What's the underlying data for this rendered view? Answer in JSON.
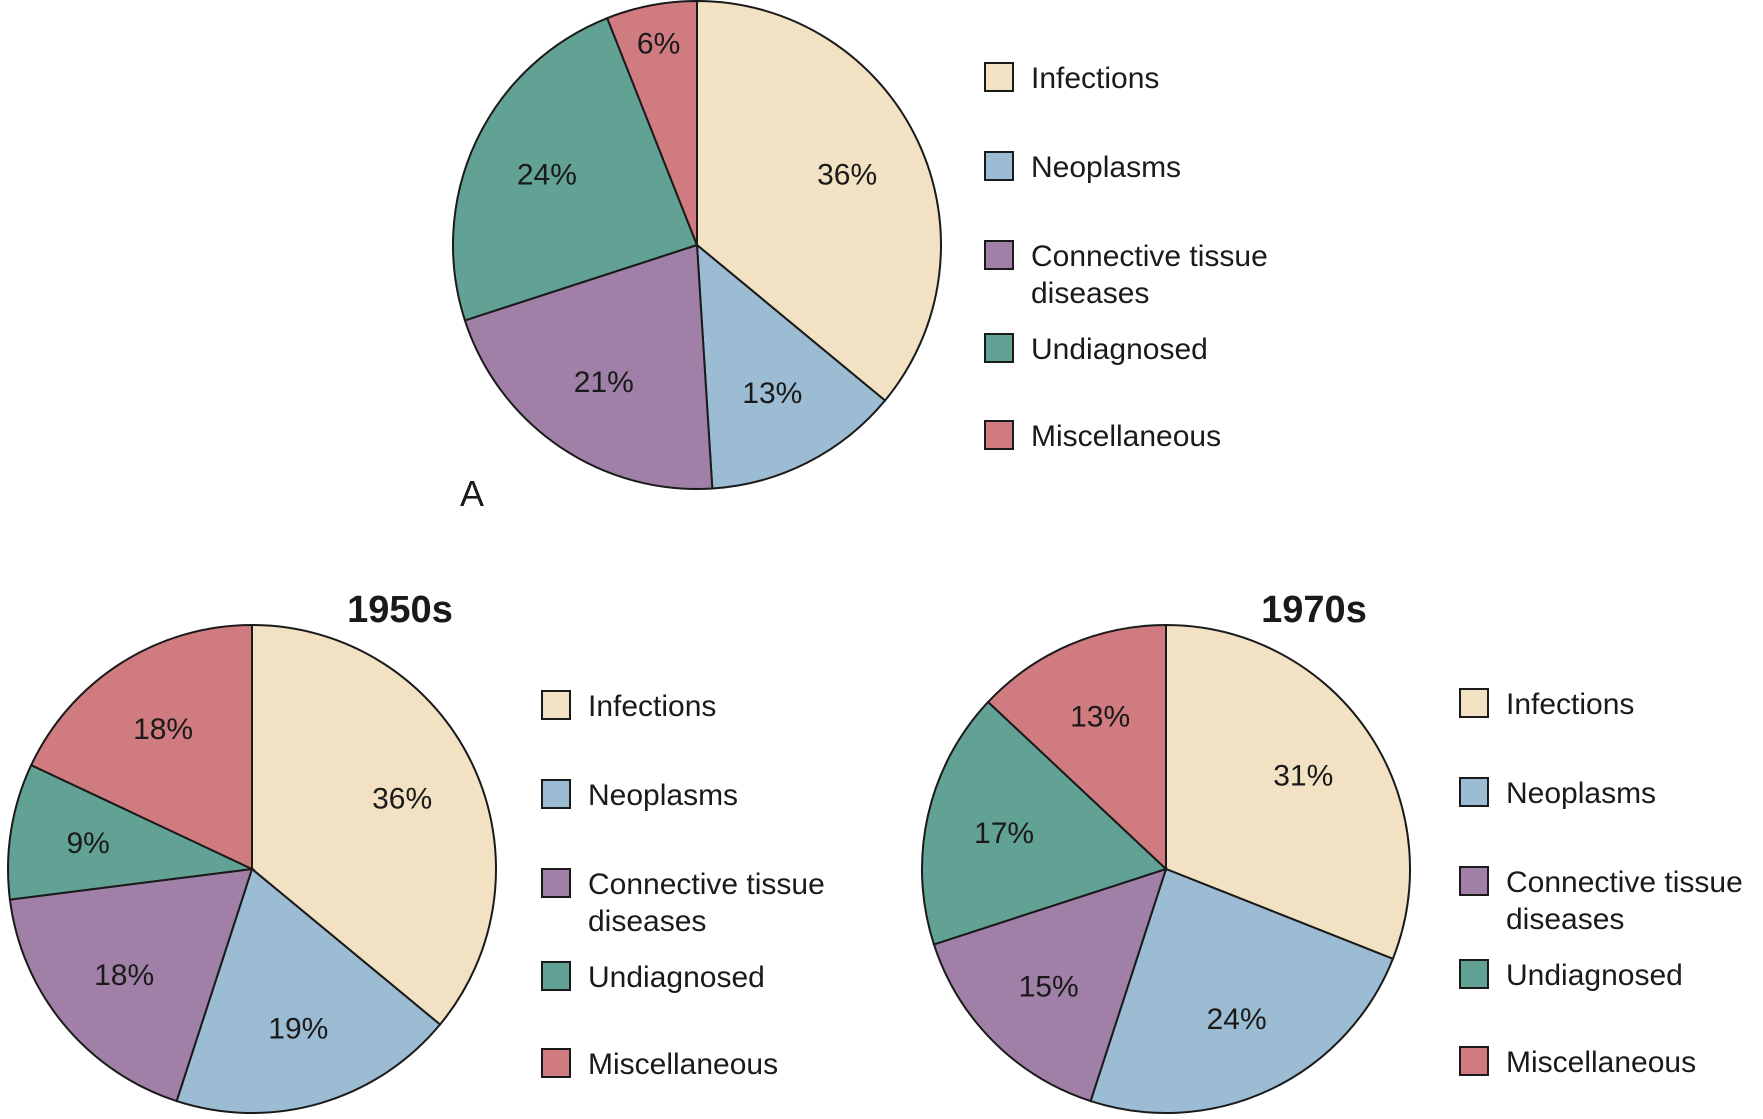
{
  "colors": {
    "infections": "#f2e1c2",
    "neoplasms": "#9cbcd3",
    "connective": "#a180a8",
    "undiagnosed": "#62a295",
    "misc": "#cf7b80",
    "outline": "#1a1a1a"
  },
  "chart_data": [
    {
      "type": "pie",
      "panel_label": "A",
      "title": "",
      "legend": [
        "Infections",
        "Neoplasms",
        "Connective tissue|diseases",
        "Undiagnosed",
        "Miscellaneous"
      ],
      "slices": [
        {
          "category": "Infections",
          "value": 36,
          "label": "36%",
          "color_key": "infections"
        },
        {
          "category": "Neoplasms",
          "value": 13,
          "label": "13%",
          "color_key": "neoplasms"
        },
        {
          "category": "Connective tissue diseases",
          "value": 21,
          "label": "21%",
          "color_key": "connective"
        },
        {
          "category": "Undiagnosed",
          "value": 24,
          "label": "24%",
          "color_key": "undiagnosed"
        },
        {
          "category": "Miscellaneous",
          "value": 6,
          "label": "6%",
          "color_key": "misc"
        }
      ]
    },
    {
      "type": "pie",
      "panel_label": "",
      "title": "1950s",
      "legend": [
        "Infections",
        "Neoplasms",
        "Connective tissue|diseases",
        "Undiagnosed",
        "Miscellaneous"
      ],
      "slices": [
        {
          "category": "Infections",
          "value": 36,
          "label": "36%",
          "color_key": "infections"
        },
        {
          "category": "Neoplasms",
          "value": 19,
          "label": "19%",
          "color_key": "neoplasms"
        },
        {
          "category": "Connective tissue diseases",
          "value": 18,
          "label": "18%",
          "color_key": "connective"
        },
        {
          "category": "Undiagnosed",
          "value": 9,
          "label": "9%",
          "color_key": "undiagnosed"
        },
        {
          "category": "Miscellaneous",
          "value": 18,
          "label": "18%",
          "color_key": "misc"
        }
      ]
    },
    {
      "type": "pie",
      "panel_label": "",
      "title": "1970s",
      "legend": [
        "Infections",
        "Neoplasms",
        "Connective tissue|diseases",
        "Undiagnosed",
        "Miscellaneous"
      ],
      "slices": [
        {
          "category": "Infections",
          "value": 31,
          "label": "31%",
          "color_key": "infections"
        },
        {
          "category": "Neoplasms",
          "value": 24,
          "label": "24%",
          "color_key": "neoplasms"
        },
        {
          "category": "Connective tissue diseases",
          "value": 15,
          "label": "15%",
          "color_key": "connective"
        },
        {
          "category": "Undiagnosed",
          "value": 17,
          "label": "17%",
          "color_key": "undiagnosed"
        },
        {
          "category": "Miscellaneous",
          "value": 13,
          "label": "13%",
          "color_key": "misc"
        }
      ]
    }
  ]
}
